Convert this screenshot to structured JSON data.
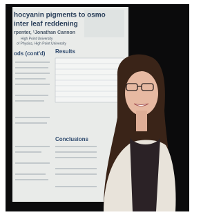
{
  "poster": {
    "title_lines": [
      "hocyanin pigments to osmo",
      "inter leaf reddening"
    ],
    "authors": "rpenter, ¹Jonathan Cannon",
    "affiliations": [
      "High Point University",
      "of Physics, High Point University"
    ],
    "sections": [
      "ods (cont'd)",
      "Results",
      "Conclusions"
    ]
  }
}
